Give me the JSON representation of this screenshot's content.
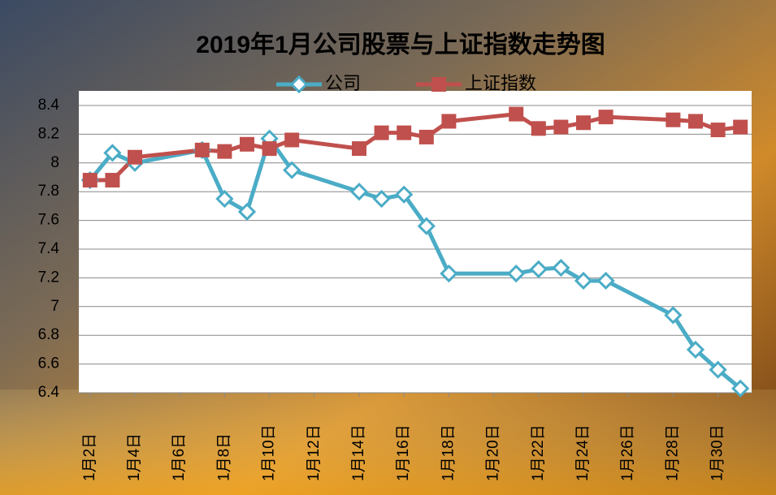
{
  "chart_data": {
    "type": "line",
    "title": "2019年1月公司股票与上证指数走势图",
    "x": [
      2,
      3,
      4,
      7,
      8,
      9,
      10,
      11,
      14,
      15,
      16,
      17,
      18,
      21,
      22,
      23,
      24,
      25,
      28,
      29,
      30,
      31
    ],
    "series": [
      {
        "name": "公司",
        "color": "#4bacc6",
        "marker": "diamond",
        "values": [
          7.88,
          8.07,
          8.0,
          8.09,
          7.75,
          7.66,
          8.17,
          7.95,
          7.8,
          7.75,
          7.78,
          7.56,
          7.23,
          7.23,
          7.26,
          7.27,
          7.18,
          7.18,
          6.94,
          6.7,
          6.56,
          6.43
        ]
      },
      {
        "name": "上证指数",
        "color": "#c0504d",
        "marker": "square",
        "values": [
          7.88,
          7.88,
          8.04,
          8.09,
          8.08,
          8.13,
          8.1,
          8.16,
          8.1,
          8.21,
          8.21,
          8.18,
          8.29,
          8.34,
          8.24,
          8.25,
          8.28,
          8.32,
          8.3,
          8.29,
          8.23,
          8.25
        ]
      }
    ],
    "xlim": [
      1.5,
      31.5
    ],
    "xticks": [
      {
        "value": 2,
        "label": "1月2日"
      },
      {
        "value": 4,
        "label": "1月4日"
      },
      {
        "value": 6,
        "label": "1月6日"
      },
      {
        "value": 8,
        "label": "1月8日"
      },
      {
        "value": 10,
        "label": "1月10日"
      },
      {
        "value": 12,
        "label": "1月12日"
      },
      {
        "value": 14,
        "label": "1月14日"
      },
      {
        "value": 16,
        "label": "1月16日"
      },
      {
        "value": 18,
        "label": "1月18日"
      },
      {
        "value": 20,
        "label": "1月20日"
      },
      {
        "value": 22,
        "label": "1月22日"
      },
      {
        "value": 24,
        "label": "1月24日"
      },
      {
        "value": 26,
        "label": "1月26日"
      },
      {
        "value": 28,
        "label": "1月28日"
      },
      {
        "value": 30,
        "label": "1月30日"
      }
    ],
    "ylim": [
      6.4,
      8.4
    ],
    "yticks": [
      6.4,
      6.6,
      6.8,
      7,
      7.2,
      7.4,
      7.6,
      7.8,
      8,
      8.2,
      8.4
    ],
    "grid": true,
    "legend": "top"
  }
}
